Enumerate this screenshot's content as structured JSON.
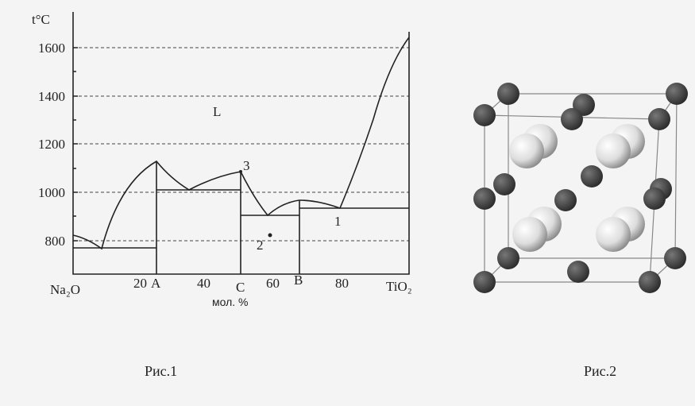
{
  "figure1": {
    "y_axis_label": "t°C",
    "y_tick_labels": [
      "1600",
      "1400",
      "1200",
      "1000",
      "800"
    ],
    "x_tick_labels": [
      "Na₂O",
      "20",
      "A",
      "40",
      "C",
      "60",
      "B",
      "80",
      "TiO₂"
    ],
    "x_axis_label": "мол. %",
    "region_label": "L",
    "point_labels": [
      "3",
      "2",
      "1"
    ],
    "caption": "Рис.1"
  },
  "figure2": {
    "caption": "Рис.2"
  }
}
